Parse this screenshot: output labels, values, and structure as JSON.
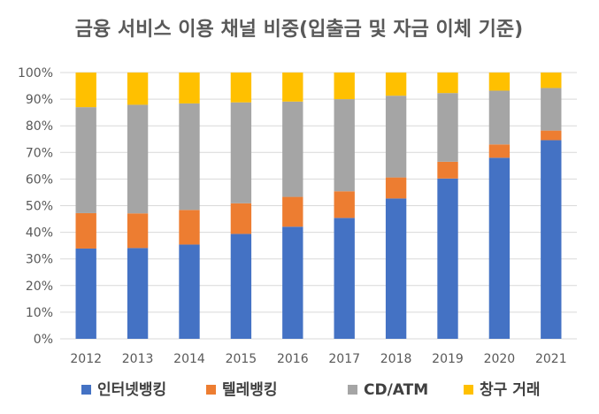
{
  "chart_data": {
    "type": "bar",
    "stacked": true,
    "title": "금융 서비스 이용 채널 비중(입출금 및 자금 이체 기준)",
    "xlabel": "",
    "ylabel": "",
    "ylim": [
      0,
      100
    ],
    "ytick_values": [
      0,
      10,
      20,
      30,
      40,
      50,
      60,
      70,
      80,
      90,
      100
    ],
    "ytick_labels": [
      "0%",
      "10%",
      "20%",
      "30%",
      "40%",
      "50%",
      "60%",
      "70%",
      "80%",
      "90%",
      "100%"
    ],
    "grid": true,
    "legend_position": "bottom",
    "categories": [
      "2012",
      "2013",
      "2014",
      "2015",
      "2016",
      "2017",
      "2018",
      "2019",
      "2020",
      "2021"
    ],
    "series": [
      {
        "name": "인터넷뱅킹",
        "color": "#4472C4",
        "values": [
          33.9,
          34.1,
          35.4,
          39.4,
          42.1,
          45.4,
          52.7,
          60.2,
          68.0,
          74.6
        ]
      },
      {
        "name": "텔레뱅킹",
        "color": "#ED7D31",
        "values": [
          13.3,
          13.0,
          13.0,
          11.5,
          11.2,
          10.0,
          7.9,
          6.3,
          5.0,
          3.6
        ]
      },
      {
        "name": "CD/ATM",
        "color": "#A5A5A5",
        "values": [
          39.8,
          40.8,
          40.0,
          37.9,
          35.8,
          34.6,
          30.7,
          25.8,
          20.2,
          16.0
        ]
      },
      {
        "name": "창구 거래",
        "color": "#FFC000",
        "values": [
          13.0,
          12.1,
          11.6,
          11.2,
          10.9,
          10.0,
          8.7,
          7.7,
          6.8,
          5.8
        ]
      }
    ]
  }
}
